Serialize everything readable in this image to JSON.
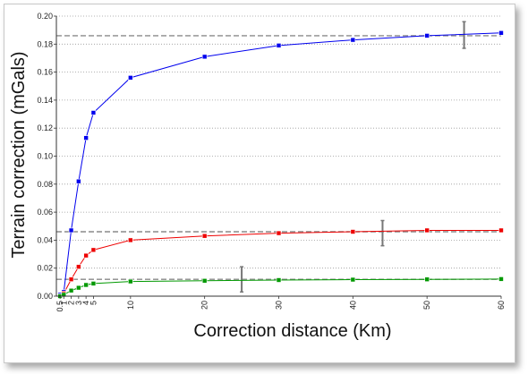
{
  "chart_data": {
    "type": "line",
    "title": "",
    "xlabel": "Correction distance (Km)",
    "ylabel": "Terrain correction (mGals)",
    "xlim": [
      0,
      60
    ],
    "ylim": [
      0,
      0.2
    ],
    "x_ticks": [
      0.5,
      1,
      2,
      3,
      4,
      5,
      10,
      20,
      30,
      40,
      50,
      60
    ],
    "x_tick_labels": [
      "0.5",
      "1",
      "2",
      "3",
      "4",
      "5",
      "10",
      "20",
      "30",
      "40",
      "50",
      "60"
    ],
    "y_ticks": [
      0,
      0.02,
      0.04,
      0.06,
      0.08,
      0.1,
      0.12,
      0.14,
      0.16,
      0.18,
      0.2
    ],
    "y_tick_labels": [
      "0.00",
      "0.02",
      "0.04",
      "0.06",
      "0.08",
      "0.10",
      "0.12",
      "0.14",
      "0.16",
      "0.18",
      "0.20"
    ],
    "grid": "horizontal-dotted",
    "legend": "none",
    "series": [
      {
        "color": "#0000ee",
        "x": [
          0.5,
          1,
          2,
          3,
          4,
          5,
          10,
          20,
          30,
          40,
          50,
          60
        ],
        "y": [
          0.001,
          0.003,
          0.047,
          0.082,
          0.113,
          0.131,
          0.156,
          0.171,
          0.179,
          0.183,
          0.186,
          0.188
        ],
        "reference_line": 0.186,
        "error_bar": {
          "x": 55,
          "low": 0.177,
          "high": 0.196
        }
      },
      {
        "color": "#ee0000",
        "x": [
          0.5,
          1,
          2,
          3,
          4,
          5,
          10,
          20,
          30,
          40,
          50,
          60
        ],
        "y": [
          0.0,
          0.002,
          0.012,
          0.021,
          0.029,
          0.033,
          0.04,
          0.043,
          0.045,
          0.046,
          0.047,
          0.047
        ],
        "reference_line": 0.046,
        "error_bar": {
          "x": 44,
          "low": 0.036,
          "high": 0.054
        }
      },
      {
        "color": "#009900",
        "x": [
          0.5,
          1,
          2,
          3,
          4,
          5,
          10,
          20,
          30,
          40,
          50,
          60
        ],
        "y": [
          0.0,
          0.001,
          0.004,
          0.006,
          0.008,
          0.009,
          0.0105,
          0.011,
          0.0115,
          0.0118,
          0.012,
          0.0122
        ],
        "reference_line": 0.012,
        "error_bar": {
          "x": 25,
          "low": 0.003,
          "high": 0.021
        }
      }
    ]
  }
}
